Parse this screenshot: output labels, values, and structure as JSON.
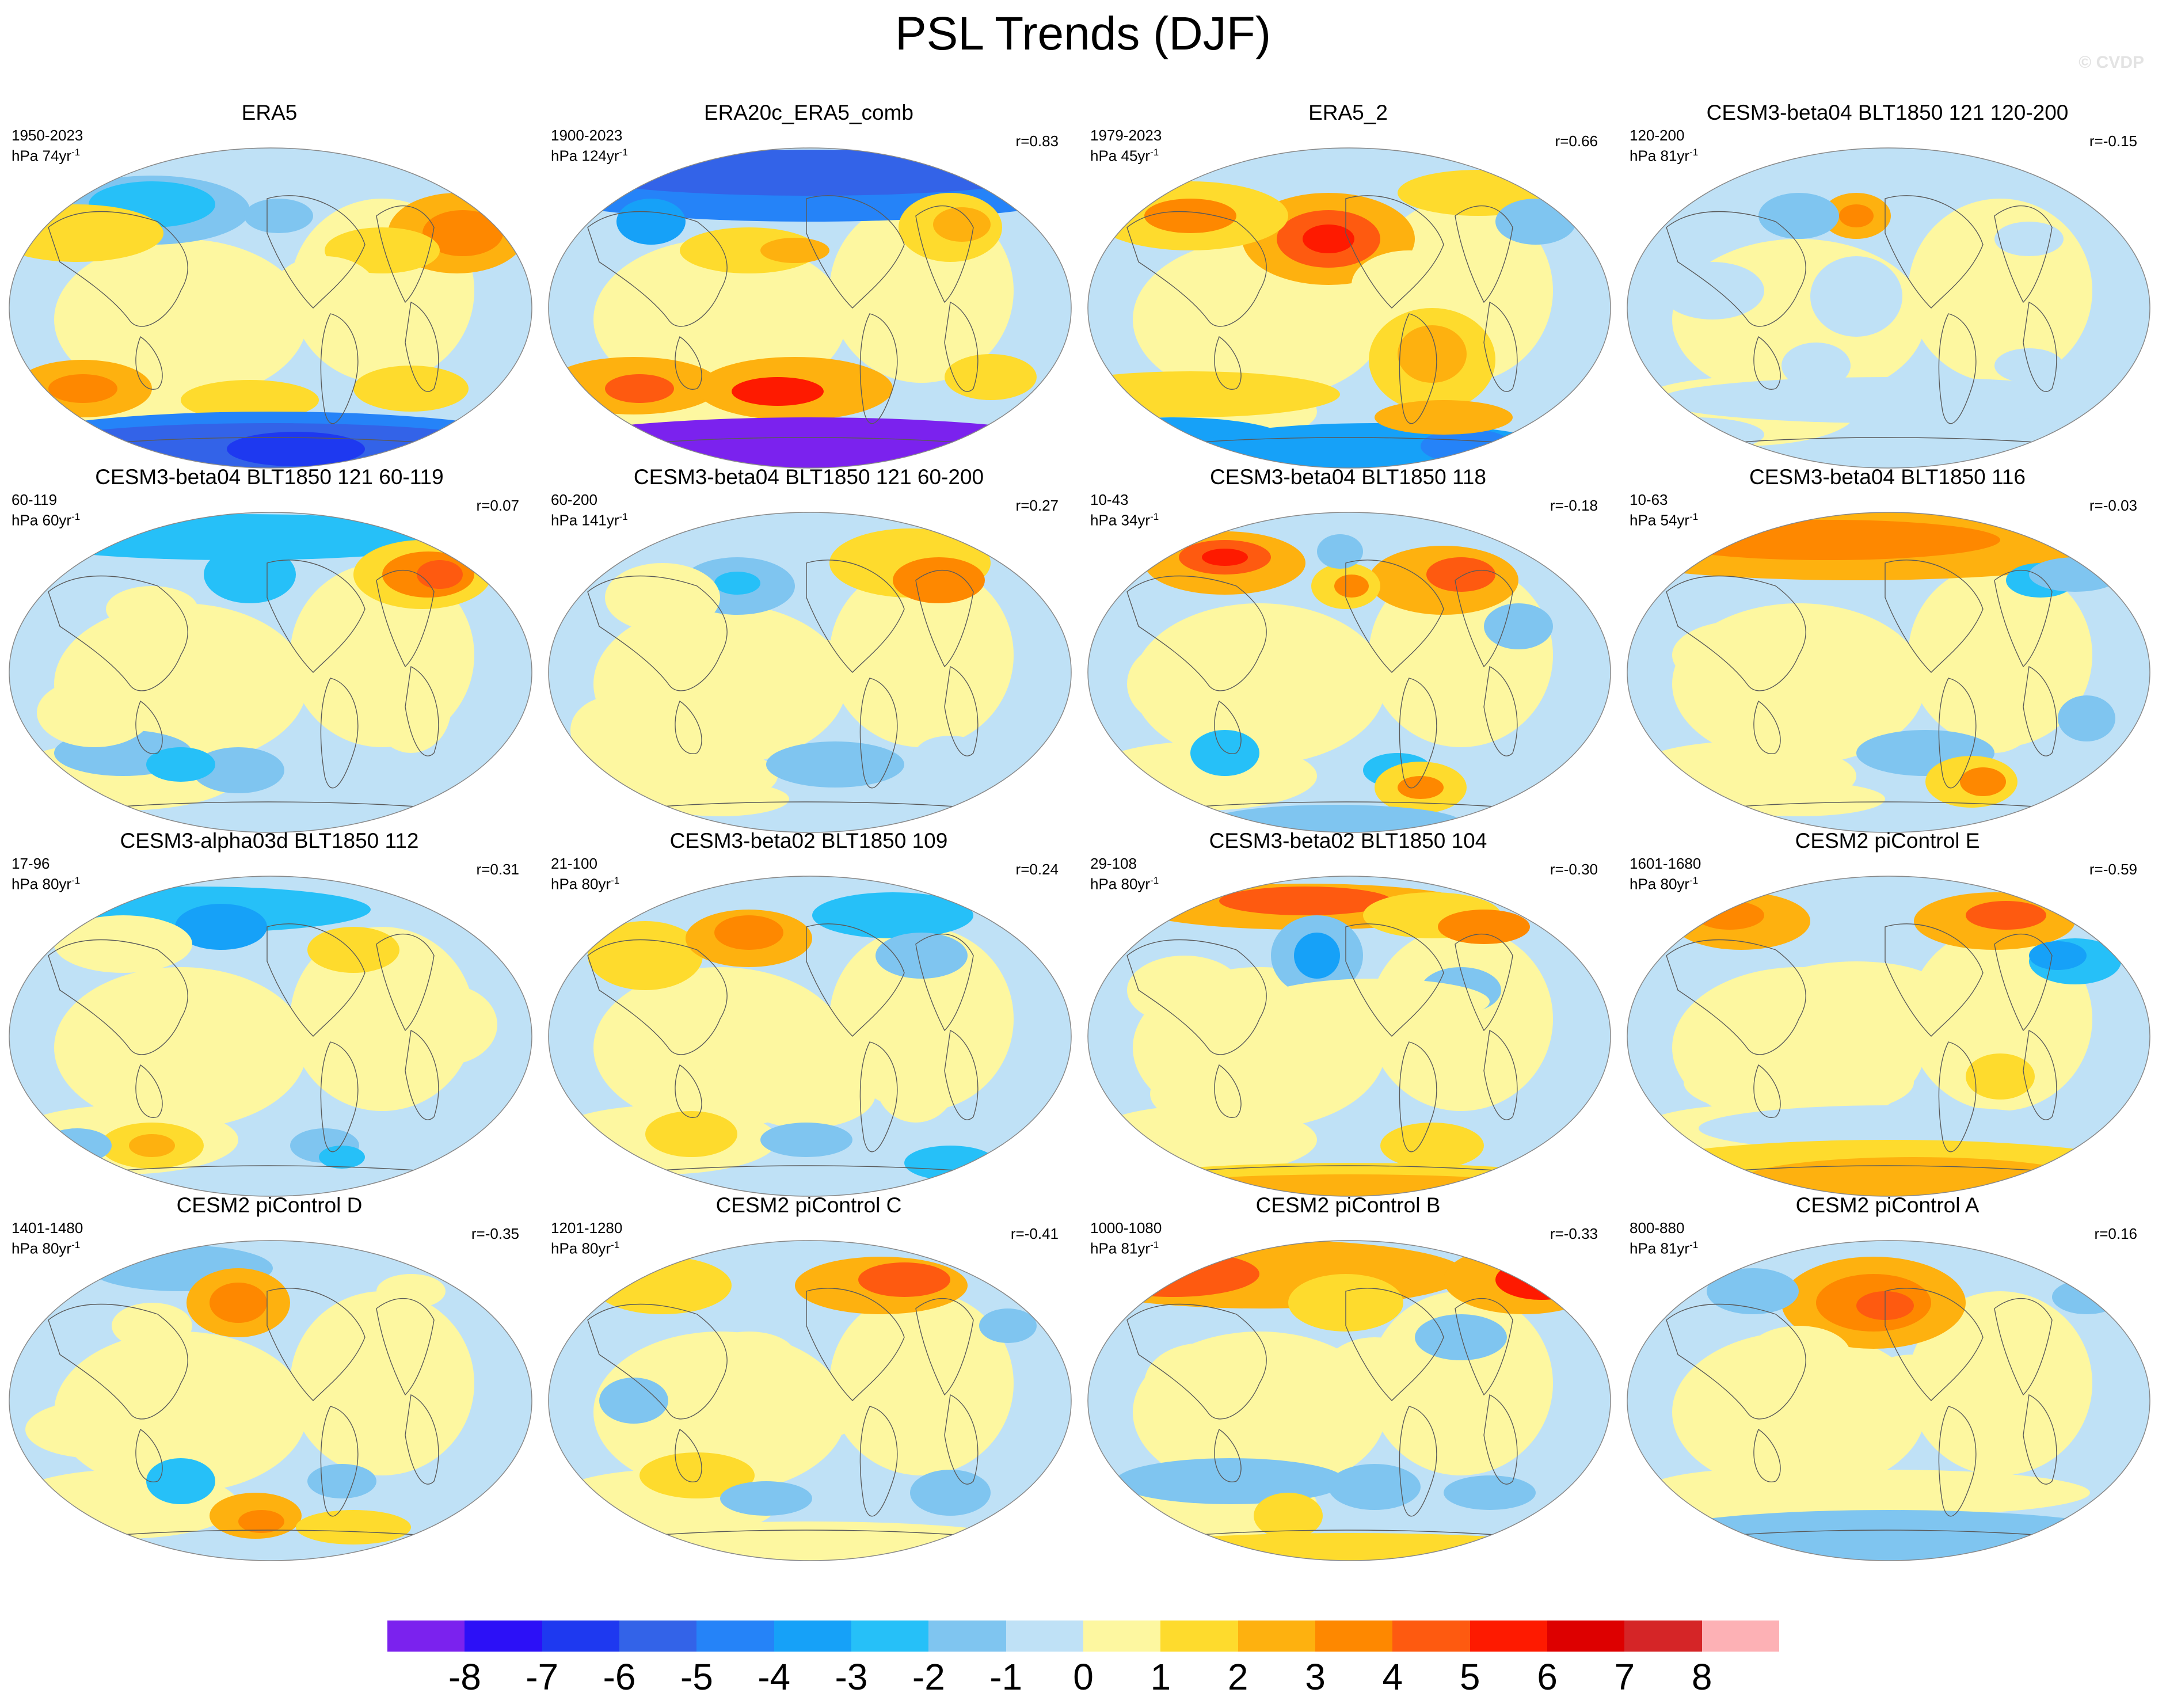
{
  "title": "PSL Trends (DJF)",
  "copyright": "© CVDP",
  "panels": [
    {
      "title": "ERA5",
      "years": "1950-2023",
      "unit": "hPa 74yr",
      "corr": ""
    },
    {
      "title": "ERA20c_ERA5_comb",
      "years": "1900-2023",
      "unit": "hPa 124yr",
      "corr": "r=0.83"
    },
    {
      "title": "ERA5_2",
      "years": "1979-2023",
      "unit": "hPa 45yr",
      "corr": "r=0.66"
    },
    {
      "title": "CESM3-beta04 BLT1850 121 120-200",
      "years": "120-200",
      "unit": "hPa 81yr",
      "corr": "r=-0.15"
    },
    {
      "title": "CESM3-beta04 BLT1850 121 60-119",
      "years": "60-119",
      "unit": "hPa 60yr",
      "corr": "r=0.07"
    },
    {
      "title": "CESM3-beta04 BLT1850 121 60-200",
      "years": "60-200",
      "unit": "hPa 141yr",
      "corr": "r=0.27"
    },
    {
      "title": "CESM3-beta04 BLT1850 118",
      "years": "10-43",
      "unit": "hPa 34yr",
      "corr": "r=-0.18"
    },
    {
      "title": "CESM3-beta04 BLT1850 116",
      "years": "10-63",
      "unit": "hPa 54yr",
      "corr": "r=-0.03"
    },
    {
      "title": "CESM3-alpha03d BLT1850 112",
      "years": "17-96",
      "unit": "hPa 80yr",
      "corr": "r=0.31"
    },
    {
      "title": "CESM3-beta02 BLT1850 109",
      "years": "21-100",
      "unit": "hPa 80yr",
      "corr": "r=0.24"
    },
    {
      "title": "CESM3-beta02 BLT1850 104",
      "years": "29-108",
      "unit": "hPa 80yr",
      "corr": "r=-0.30"
    },
    {
      "title": "CESM2 piControl E",
      "years": "1601-1680",
      "unit": "hPa 80yr",
      "corr": "r=-0.59"
    },
    {
      "title": "CESM2 piControl D",
      "years": "1401-1480",
      "unit": "hPa 80yr",
      "corr": "r=-0.35"
    },
    {
      "title": "CESM2 piControl C",
      "years": "1201-1280",
      "unit": "hPa 80yr",
      "corr": "r=-0.41"
    },
    {
      "title": "CESM2 piControl B",
      "years": "1000-1080",
      "unit": "hPa 81yr",
      "corr": "r=-0.33"
    },
    {
      "title": "CESM2 piControl A",
      "years": "800-880",
      "unit": "hPa 81yr",
      "corr": "r=0.16"
    }
  ],
  "unit_superscript": "-1",
  "colorbar": {
    "labels": [
      "-8",
      "-7",
      "-6",
      "-5",
      "-4",
      "-3",
      "-2",
      "-1",
      "0",
      "1",
      "2",
      "3",
      "4",
      "5",
      "6",
      "7",
      "8"
    ],
    "colors": [
      "#7b22ee",
      "#2c10f7",
      "#1e39f0",
      "#3363e8",
      "#2583f8",
      "#16a1f8",
      "#26c0f8",
      "#7fc5f0",
      "#bfe1f6",
      "#fdf7a0",
      "#fedb2d",
      "#feb10f",
      "#fe8800",
      "#fe5a10",
      "#fe1a00",
      "#dd0000",
      "#d52527",
      "#fdb1b5"
    ]
  },
  "map_style": {
    "ocean": "#bfe1f6",
    "light": "#fdf7a0",
    "coast": "#5a5a5a"
  }
}
